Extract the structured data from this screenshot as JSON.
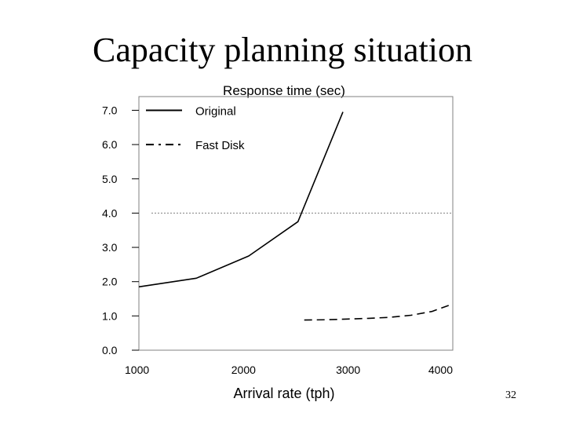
{
  "slide": {
    "title": "Capacity planning situation",
    "page_number": "32"
  },
  "colors": {
    "line": "#000000",
    "threshold": "#808080",
    "frame": "#808080"
  },
  "chart_data": {
    "type": "line",
    "title": "Response time  (sec)",
    "xlabel": "Arrival rate  (tph)",
    "ylabel": "",
    "xlim": [
      1000,
      4000
    ],
    "ylim": [
      0,
      7.4
    ],
    "x_ticks": [
      1000,
      2000,
      3000,
      4000
    ],
    "x_tick_labels": [
      "1000",
      "2000",
      "3000",
      "4000"
    ],
    "y_ticks": [
      0,
      1,
      2,
      3,
      4,
      5,
      6,
      7
    ],
    "y_tick_labels": [
      "0.0",
      "1.0",
      "2.0",
      "3.0",
      "4.0",
      "5.0",
      "6.0",
      "7.0"
    ],
    "grid": false,
    "legend_position": "top-left",
    "threshold": {
      "y": 4.0,
      "style": "dotted"
    },
    "series": [
      {
        "name": "Original",
        "style": "solid",
        "x": [
          1000,
          1550,
          2050,
          2520,
          2950
        ],
        "y": [
          1.85,
          2.1,
          2.75,
          3.75,
          6.95
        ]
      },
      {
        "name": "Fast Disk",
        "style": "dashed",
        "x": [
          2580,
          2800,
          3000,
          3200,
          3400,
          3600,
          3800,
          4000
        ],
        "y": [
          0.88,
          0.89,
          0.91,
          0.93,
          0.96,
          1.02,
          1.13,
          1.35
        ]
      }
    ]
  }
}
